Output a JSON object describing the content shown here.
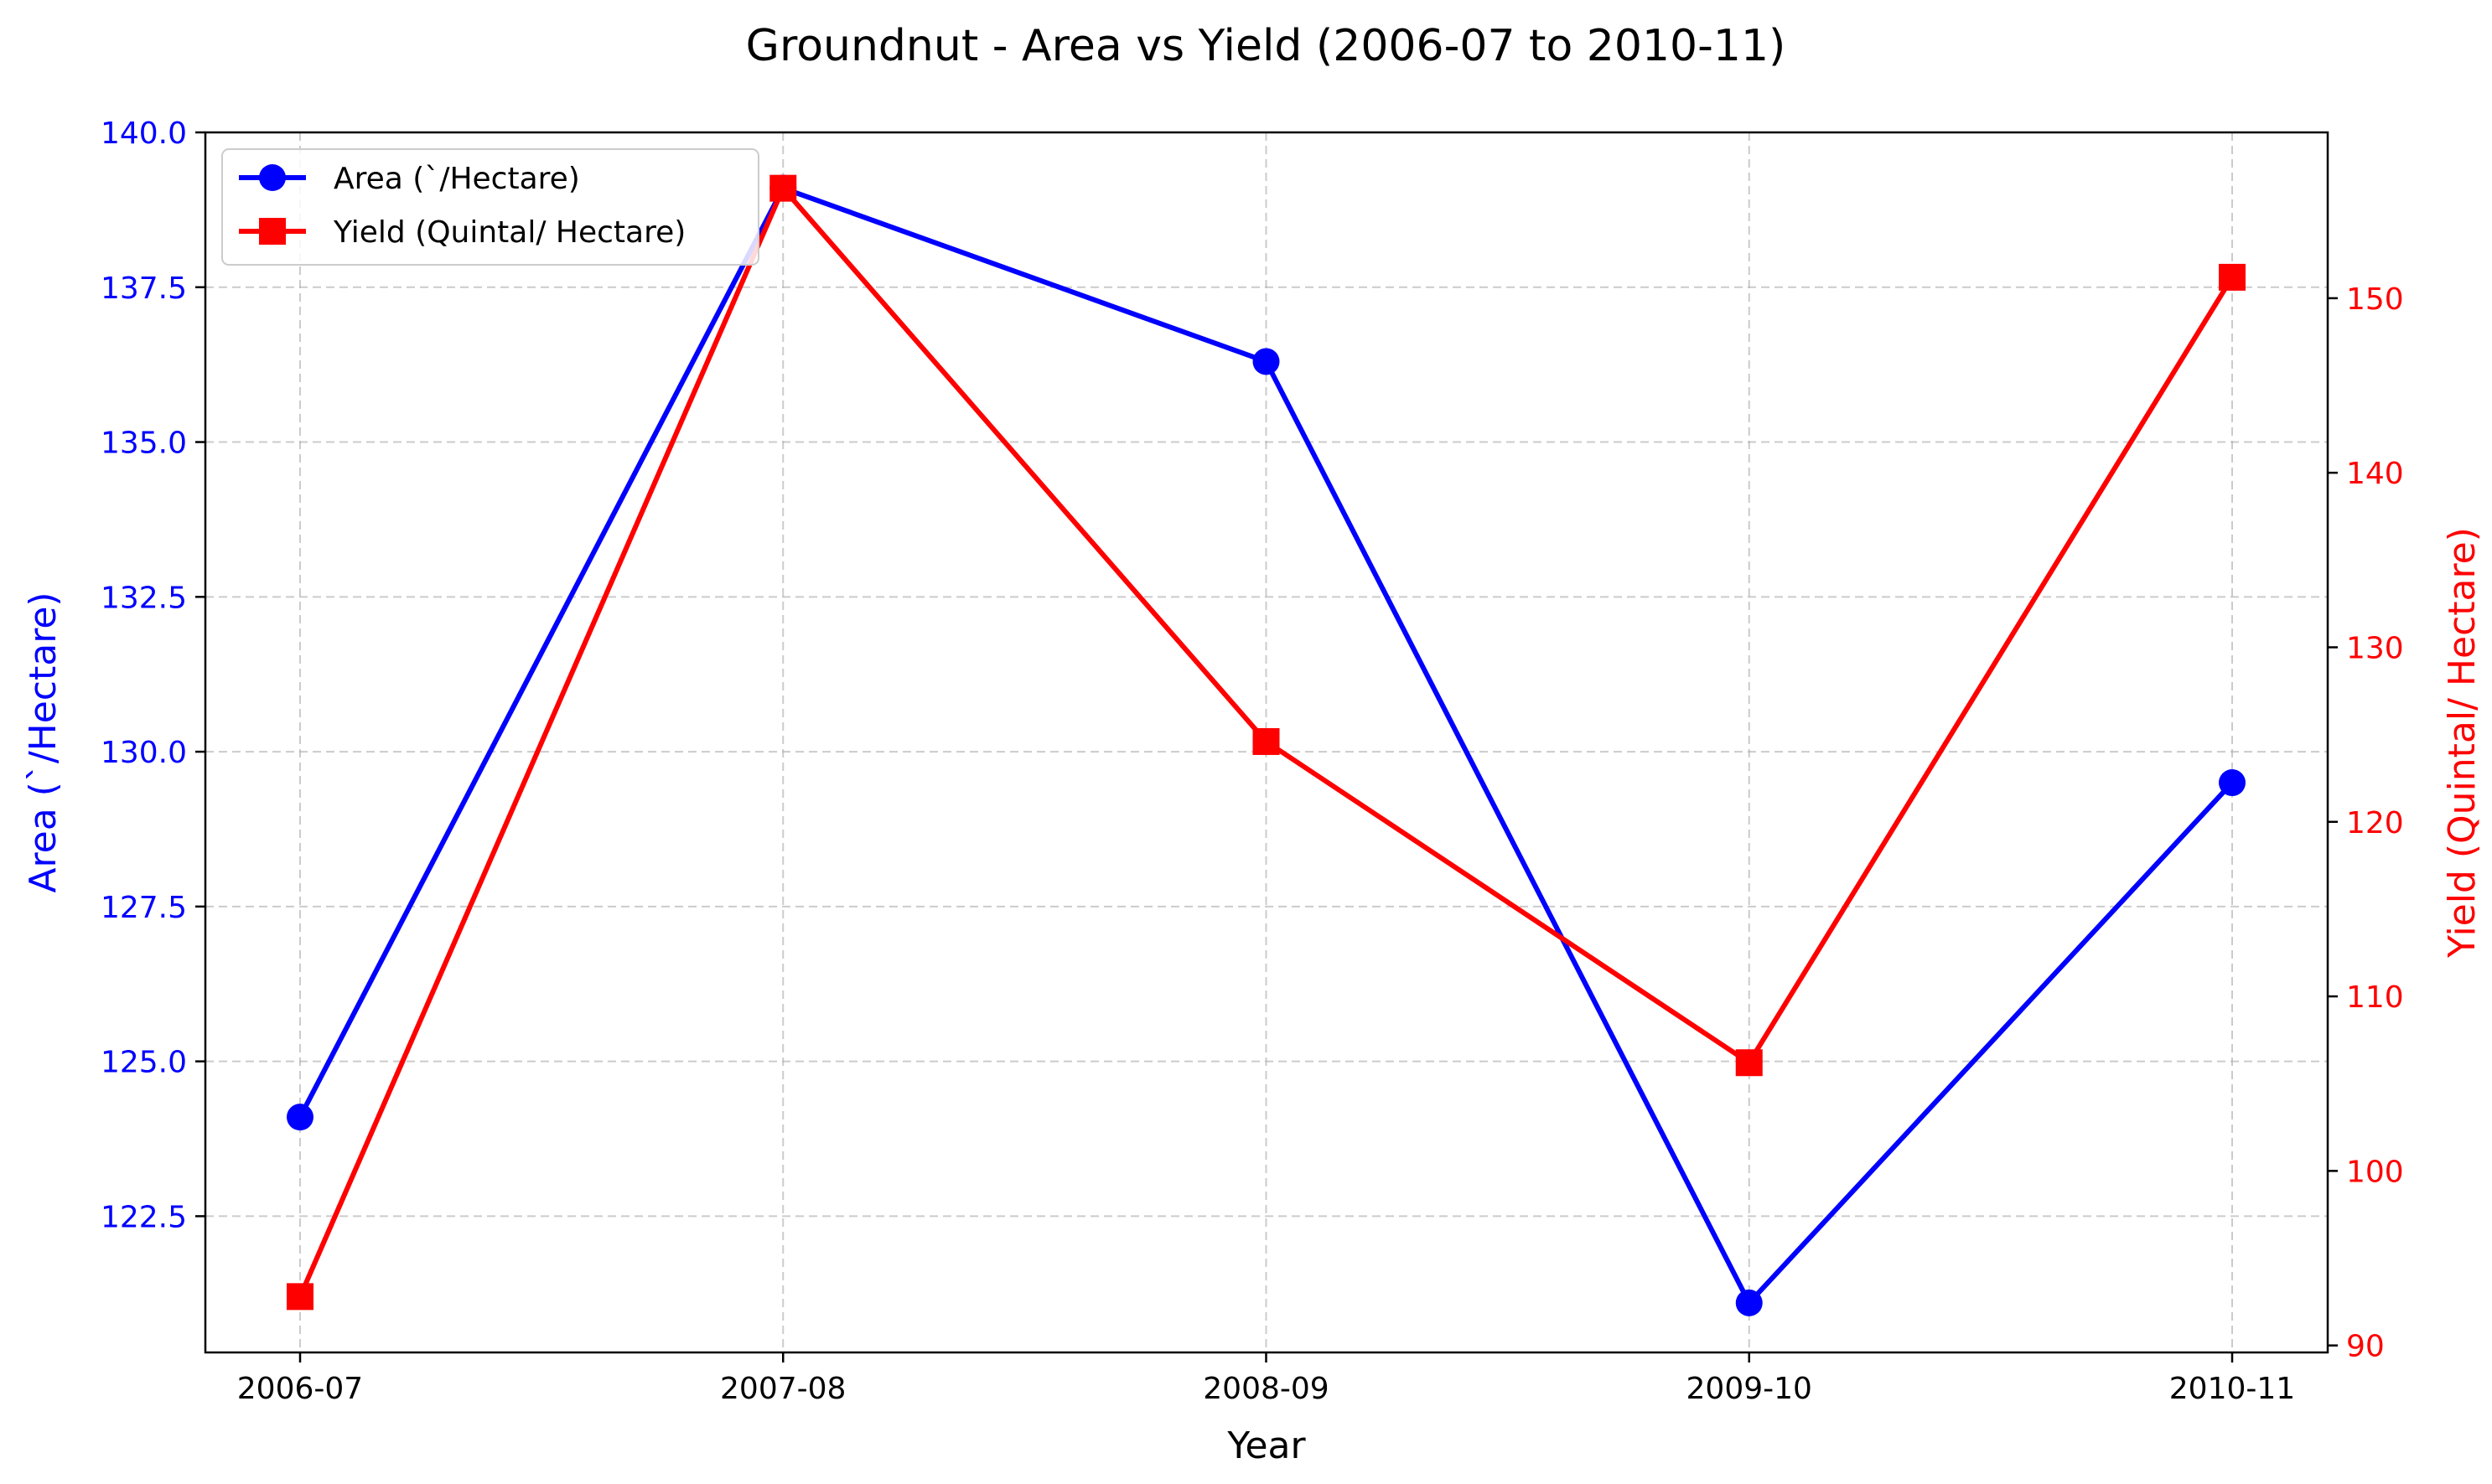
{
  "chart_data": {
    "type": "line",
    "title": "Groundnut - Area vs Yield (2006-07 to 2010-11)",
    "xlabel": "Year",
    "ylabel_left": "Area (`/Hectare)",
    "ylabel_right": "Yield (Quintal/ Hectare)",
    "categories": [
      "2006-07",
      "2007-08",
      "2008-09",
      "2009-10",
      "2010-11"
    ],
    "y_left": {
      "lim": [
        120.3,
        140.0
      ],
      "ticks": [
        122.5,
        125.0,
        127.5,
        130.0,
        132.5,
        135.0,
        137.5,
        140.0
      ],
      "tick_labels": [
        "122.5",
        "125.0",
        "127.5",
        "130.0",
        "132.5",
        "135.0",
        "137.5",
        "140.0"
      ]
    },
    "y_right": {
      "lim": [
        89.6,
        159.5
      ],
      "ticks": [
        90,
        100,
        110,
        120,
        130,
        140,
        150
      ],
      "tick_labels": [
        "90",
        "100",
        "110",
        "120",
        "130",
        "140",
        "150"
      ]
    },
    "series": [
      {
        "name": "Area (`/Hectare)",
        "axis": "left",
        "color": "#0000ff",
        "marker": "circle",
        "values": [
          124.1,
          139.1,
          136.3,
          121.1,
          129.5
        ]
      },
      {
        "name": "Yield (Quintal/ Hectare)",
        "axis": "right",
        "color": "#ff0000",
        "marker": "square",
        "values": [
          92.8,
          156.3,
          124.6,
          106.2,
          151.2
        ]
      }
    ],
    "grid": true,
    "legend_position": "top-left"
  }
}
